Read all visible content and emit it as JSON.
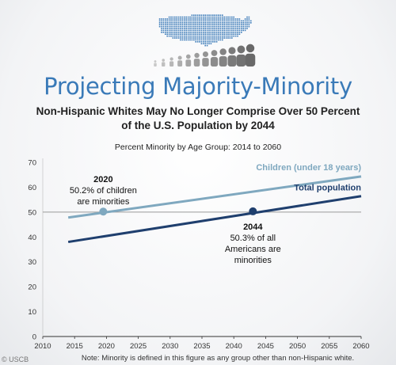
{
  "header": {
    "title": "Projecting Majority-Minority",
    "subtitle_line1": "Non-Hispanic Whites May No Longer Comprise Over 50 Percent",
    "subtitle_line2": "of the U.S. Population by 2044"
  },
  "note": "Note: Minority is defined in this figure as any group other than non-Hispanic white.",
  "watermark": "USCB",
  "chart_data": {
    "type": "line",
    "title": "Percent Minority by Age Group: 2014 to 2060",
    "xlabel": "",
    "ylabel": "",
    "xlim": [
      2010,
      2060
    ],
    "ylim": [
      0,
      70
    ],
    "x_ticks": [
      2010,
      2015,
      2020,
      2025,
      2030,
      2035,
      2040,
      2045,
      2050,
      2055,
      2060
    ],
    "y_ticks": [
      0,
      10,
      20,
      30,
      40,
      50,
      60,
      70
    ],
    "grid": false,
    "reference_line": 50,
    "series": [
      {
        "name": "Children (under 18 years)",
        "color": "#7fa8bf",
        "x": [
          2014,
          2060
        ],
        "y": [
          47.8,
          64.3
        ]
      },
      {
        "name": "Total population",
        "color": "#1f3f6e",
        "x": [
          2014,
          2060
        ],
        "y": [
          38.0,
          56.4
        ]
      }
    ],
    "annotations": [
      {
        "year": "2020",
        "text_line1": "50.2% of children",
        "text_line2": "are minorities",
        "point": [
          2019.5,
          50.2
        ],
        "color": "#7fa8bf"
      },
      {
        "year": "2044",
        "text_line1": "50.3% of all",
        "text_line2": "Americans are",
        "text_line3": "minorities",
        "point": [
          2043,
          50.3
        ],
        "color": "#1f3f6e"
      }
    ]
  }
}
